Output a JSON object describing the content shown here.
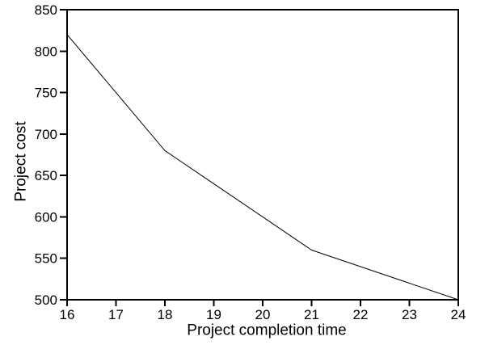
{
  "figure": {
    "background": "#ffffff",
    "stroke_color": "#000000",
    "text_color": "#000000"
  },
  "chart_data": {
    "type": "line",
    "title": "",
    "xlabel": "Project completion time",
    "ylabel": "Project cost",
    "x": [
      16,
      17,
      18,
      19,
      20,
      21,
      22,
      23,
      24
    ],
    "y": [
      820,
      750,
      680,
      640,
      600,
      560,
      540,
      520,
      500
    ],
    "xlim": [
      16,
      24
    ],
    "ylim": [
      500,
      850
    ],
    "x_ticks": [
      16,
      17,
      18,
      19,
      20,
      21,
      22,
      23,
      24
    ],
    "y_ticks": [
      500,
      550,
      600,
      650,
      700,
      750,
      800,
      850
    ],
    "grid": false,
    "legend": false,
    "markers": false,
    "line_color": "#000000",
    "tick_label_font_px": 17
  }
}
